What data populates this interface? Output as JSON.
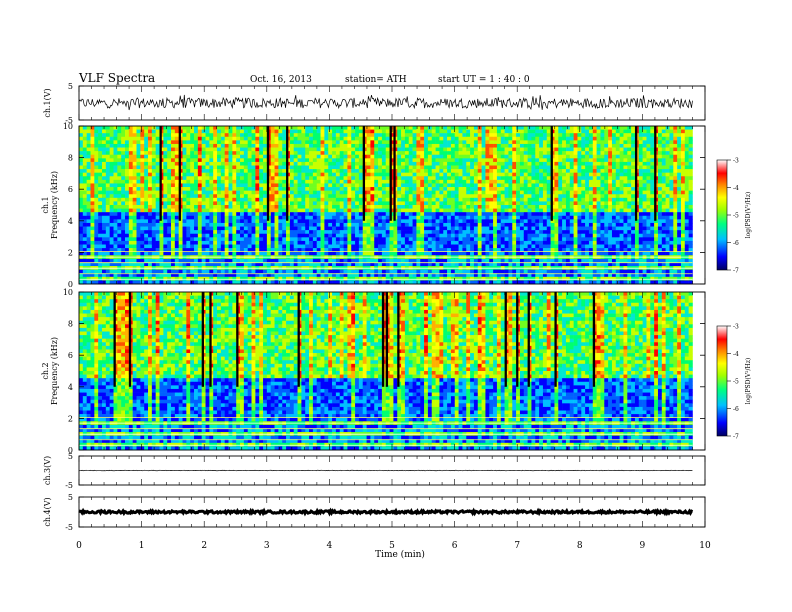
{
  "header": {
    "title": "VLF  Spectra",
    "date": "Oct. 16, 2013",
    "station": "station= ATH",
    "start": "start  UT  =   1 : 40 : 0"
  },
  "colors": {
    "spectrogram_scale": [
      "#000080",
      "#0000ff",
      "#0080ff",
      "#00e0ff",
      "#00ff80",
      "#80ff00",
      "#ffff00",
      "#ff8000",
      "#ff0000",
      "#ffffff"
    ]
  },
  "chart_data": [
    {
      "type": "line",
      "name": "ch1-waveform",
      "ylabel": "ch.1(V)",
      "ylim": [
        -5,
        5
      ],
      "yticks": [
        "5",
        "-5"
      ],
      "x": [
        0,
        9.8
      ],
      "description_values": {
        "baseline": 0,
        "typical_amplitude": 1.5,
        "max_spike": 2.5
      }
    },
    {
      "type": "heatmap",
      "name": "ch1-spectrogram",
      "ylabel": "ch.1\nFrequency  (kHz)",
      "ylim": [
        0,
        10
      ],
      "yticks": [
        "0",
        "2",
        "4",
        "6",
        "8",
        "10"
      ],
      "colorbar": {
        "label": "log(PSD(V²/Hz)",
        "ticks": [
          "-3",
          "-4",
          "-5",
          "-6",
          "-7"
        ],
        "range": [
          -7,
          -3
        ]
      }
    },
    {
      "type": "heatmap",
      "name": "ch2-spectrogram",
      "ylabel": "ch.2\nFrequency  (kHz)",
      "ylim": [
        0,
        10
      ],
      "yticks": [
        "0",
        "2",
        "4",
        "6",
        "8",
        "10"
      ],
      "colorbar": {
        "label": "log(PSD(V²/Hz)",
        "ticks": [
          "-3",
          "-4",
          "-5",
          "-6",
          "-7"
        ],
        "range": [
          -7,
          -3
        ]
      }
    },
    {
      "type": "line",
      "name": "ch3-waveform",
      "ylabel": "ch.3(V)",
      "ylim": [
        -5,
        5
      ],
      "yticks": [
        "5",
        "-5"
      ],
      "x": [
        0,
        9.8
      ],
      "description_values": {
        "baseline": 0,
        "typical_amplitude": 0.1
      }
    },
    {
      "type": "line",
      "name": "ch4-waveform",
      "ylabel": "ch.4(V)",
      "ylim": [
        -5,
        5
      ],
      "yticks": [
        "5",
        "-5"
      ],
      "x": [
        0,
        9.8
      ],
      "description_values": {
        "baseline": 0,
        "typical_amplitude": 0.4
      }
    }
  ],
  "xaxis": {
    "label": "Time  (min)",
    "range": [
      0,
      10
    ],
    "ticks": [
      "0",
      "1",
      "2",
      "3",
      "4",
      "5",
      "6",
      "7",
      "8",
      "9",
      "10"
    ]
  }
}
